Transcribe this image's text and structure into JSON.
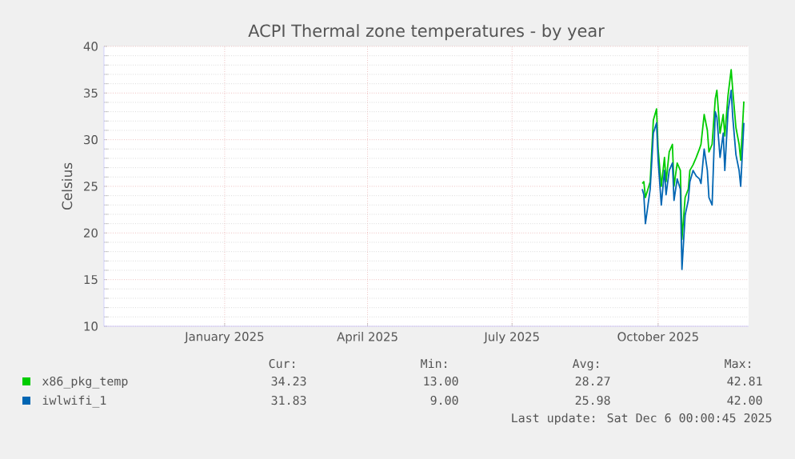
{
  "chart_data": {
    "type": "line",
    "title": "ACPI Thermal zone temperatures - by year",
    "ylabel": "Celsius",
    "x": [
      "2025-09-21",
      "2025-09-22",
      "2025-09-23",
      "2025-09-26",
      "2025-09-28",
      "2025-09-30",
      "2025-10-01",
      "2025-10-03",
      "2025-10-05",
      "2025-10-06",
      "2025-10-08",
      "2025-10-10",
      "2025-10-11",
      "2025-10-13",
      "2025-10-15",
      "2025-10-16",
      "2025-10-18",
      "2025-10-20",
      "2025-10-21",
      "2025-10-23",
      "2025-10-25",
      "2025-10-27",
      "2025-10-28",
      "2025-10-30",
      "2025-11-01",
      "2025-11-02",
      "2025-11-04",
      "2025-11-06",
      "2025-11-07",
      "2025-11-09",
      "2025-11-11",
      "2025-11-12",
      "2025-11-14",
      "2025-11-16",
      "2025-11-17",
      "2025-11-19",
      "2025-11-21",
      "2025-11-22",
      "2025-11-24"
    ],
    "series": [
      {
        "name": "x86_pkg_temp",
        "color": "#00cc00",
        "values": [
          25.3,
          25.5,
          23.8,
          25.5,
          32.1,
          33.3,
          29,
          25,
          28.1,
          25.5,
          28.7,
          29.5,
          25,
          27.5,
          26.7,
          19.3,
          23.8,
          24.7,
          26.7,
          27.3,
          28.1,
          29,
          29.5,
          32.7,
          31,
          28.7,
          29.5,
          34.4,
          35.3,
          30.7,
          32.7,
          30.4,
          34.7,
          37.5,
          35.3,
          31.3,
          29.5,
          27.8,
          34.1
        ]
      },
      {
        "name": "iwlwifi_1",
        "color": "#0066b3",
        "values": [
          24.7,
          24.1,
          21,
          24.7,
          30.7,
          31.8,
          27.8,
          23,
          26.7,
          24.1,
          26.7,
          27.5,
          23.5,
          25.8,
          24.7,
          16.1,
          21.9,
          23.5,
          25.5,
          26.7,
          26.1,
          25.8,
          25.3,
          29,
          26.7,
          23.8,
          23,
          33,
          32.4,
          28.1,
          30.7,
          26.7,
          33,
          35.3,
          32.4,
          28.4,
          26.7,
          25,
          31.8
        ]
      }
    ],
    "xlim": [
      "2024-10-17",
      "2025-11-27"
    ],
    "xticks": [
      {
        "value": "2025-01-01",
        "label": "January 2025"
      },
      {
        "value": "2025-04-01",
        "label": "April 2025"
      },
      {
        "value": "2025-07-01",
        "label": "July 2025"
      },
      {
        "value": "2025-10-01",
        "label": "October 2025"
      }
    ],
    "ylim": [
      10,
      40
    ],
    "yticks": [
      10,
      15,
      20,
      25,
      30,
      35,
      40
    ],
    "grid": true,
    "legend": "bottom",
    "marker": "none",
    "line_style": "solid",
    "annotations": [
      "Cur:",
      "Min:",
      "Avg:",
      "Max:",
      "34.23",
      "13.00",
      "28.27",
      "42.81",
      "31.83",
      "9.00",
      "25.98",
      "42.00",
      "Last update: Sat Dec  6 00:00:45 2025"
    ]
  }
}
